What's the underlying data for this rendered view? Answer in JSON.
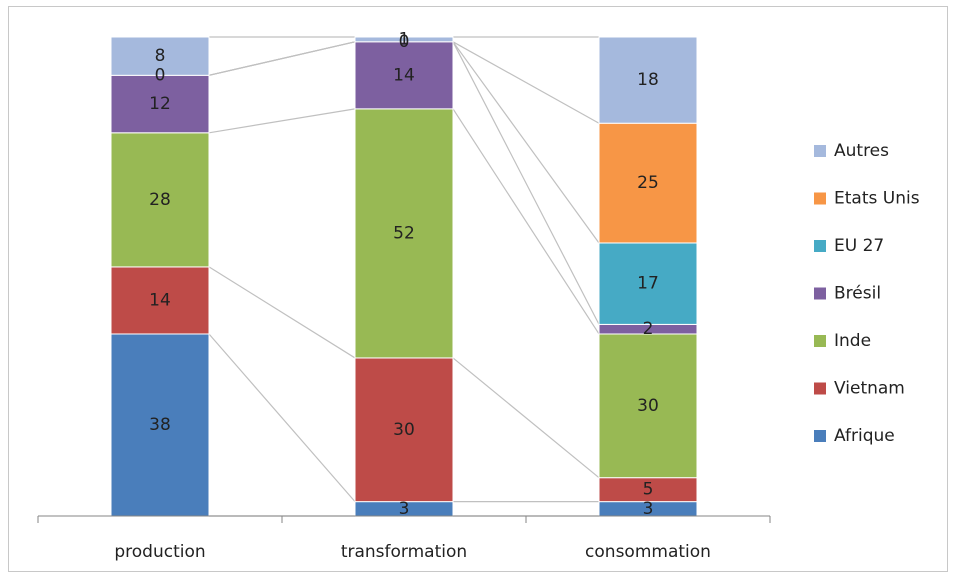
{
  "chart_data": {
    "type": "bar",
    "stacked": true,
    "categories": [
      "production",
      "transformation",
      "consommation"
    ],
    "series": [
      {
        "name": "Afrique",
        "color": "#4a7ebb",
        "values": [
          38,
          3,
          3
        ]
      },
      {
        "name": "Vietnam",
        "color": "#be4b48",
        "values": [
          14,
          30,
          5
        ]
      },
      {
        "name": "Inde",
        "color": "#98b954",
        "values": [
          28,
          52,
          30
        ]
      },
      {
        "name": "Brésil",
        "color": "#7d60a0",
        "values": [
          12,
          14,
          2
        ]
      },
      {
        "name": "EU 27",
        "color": "#46aac5",
        "values": [
          0,
          0,
          17
        ]
      },
      {
        "name": "Etats Unis",
        "color": "#f79646",
        "values": [
          0,
          0,
          25
        ]
      },
      {
        "name": "Autres",
        "color": "#a5b9dd",
        "values": [
          8,
          1,
          18
        ]
      }
    ],
    "data_labels": [
      [
        "38",
        "14",
        "28",
        "12",
        "0",
        "",
        "8"
      ],
      [
        "3",
        "30",
        "52",
        "14",
        "0",
        "",
        "1"
      ],
      [
        "3",
        "5",
        "30",
        "2",
        "17",
        "25",
        "18"
      ]
    ],
    "ylim": [
      0,
      100
    ],
    "legend_position": "right",
    "legend_order": [
      "Autres",
      "Etats Unis",
      "EU 27",
      "Brésil",
      "Inde",
      "Vietnam",
      "Afrique"
    ],
    "connector_lines": true,
    "connector_color": "#c0c0c0",
    "grid": false
  }
}
